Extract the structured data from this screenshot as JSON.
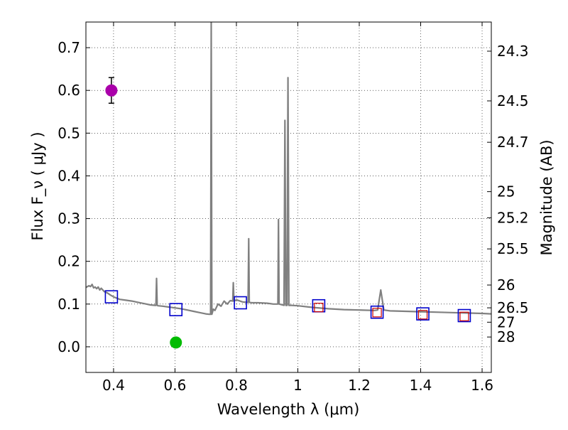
{
  "chart_data": {
    "type": "scatter",
    "title": "",
    "xlabel": "Wavelength  λ (μm)",
    "ylabel": "Flux  F_ν  ( μJy )",
    "ylabel_right": "Magnitude (AB)",
    "xlim": [
      0.31,
      1.63
    ],
    "ylim": [
      -0.06,
      0.76
    ],
    "grid": true,
    "x_ticks": [
      0.4,
      0.6,
      0.8,
      1.0,
      1.2,
      1.4,
      1.6
    ],
    "x_tick_labels": [
      "0.4",
      "0.6",
      "0.8",
      "1",
      "1.2",
      "1.4",
      "1.6"
    ],
    "y_ticks": [
      0.0,
      0.1,
      0.2,
      0.3,
      0.4,
      0.5,
      0.6,
      0.7
    ],
    "y_tick_labels": [
      "0.0",
      "0.1",
      "0.2",
      "0.3",
      "0.4",
      "0.5",
      "0.6",
      "0.7"
    ],
    "right_ticks": [
      {
        "label": "24.3",
        "mag": 24.3
      },
      {
        "label": "24.5",
        "mag": 24.5
      },
      {
        "label": "24.7",
        "mag": 24.7
      },
      {
        "label": "25",
        "mag": 25.0
      },
      {
        "label": "25.2",
        "mag": 25.2
      },
      {
        "label": "25.5",
        "mag": 25.5
      },
      {
        "label": "26",
        "mag": 26.0
      },
      {
        "label": "26.5",
        "mag": 26.5
      },
      {
        "label": "27",
        "mag": 27.0
      },
      {
        "label": "28",
        "mag": 28.0
      }
    ],
    "colors": {
      "spectrum": "#808080",
      "model_box": "#0000cc",
      "observed_box": "#cc0000",
      "magenta_point": "#aa00aa",
      "green_point": "#00bb00",
      "error_bar": "#000000"
    },
    "series": [
      {
        "name": "model spectrum",
        "kind": "line",
        "points": [
          [
            0.31,
            0.139
          ],
          [
            0.32,
            0.143
          ],
          [
            0.325,
            0.141
          ],
          [
            0.33,
            0.146
          ],
          [
            0.335,
            0.138
          ],
          [
            0.34,
            0.14
          ],
          [
            0.345,
            0.136
          ],
          [
            0.35,
            0.14
          ],
          [
            0.355,
            0.133
          ],
          [
            0.36,
            0.137
          ],
          [
            0.37,
            0.129
          ],
          [
            0.38,
            0.126
          ],
          [
            0.39,
            0.121
          ],
          [
            0.4,
            0.117
          ],
          [
            0.42,
            0.111
          ],
          [
            0.44,
            0.109
          ],
          [
            0.46,
            0.107
          ],
          [
            0.48,
            0.104
          ],
          [
            0.5,
            0.101
          ],
          [
            0.52,
            0.098
          ],
          [
            0.535,
            0.097
          ],
          [
            0.538,
            0.097
          ],
          [
            0.54,
            0.16
          ],
          [
            0.542,
            0.097
          ],
          [
            0.545,
            0.096
          ],
          [
            0.56,
            0.095
          ],
          [
            0.58,
            0.093
          ],
          [
            0.6,
            0.091
          ],
          [
            0.62,
            0.089
          ],
          [
            0.64,
            0.086
          ],
          [
            0.66,
            0.083
          ],
          [
            0.68,
            0.08
          ],
          [
            0.7,
            0.077
          ],
          [
            0.712,
            0.076
          ],
          [
            0.716,
            0.076
          ],
          [
            0.718,
            0.76
          ],
          [
            0.72,
            0.076
          ],
          [
            0.725,
            0.088
          ],
          [
            0.73,
            0.085
          ],
          [
            0.74,
            0.1
          ],
          [
            0.75,
            0.095
          ],
          [
            0.76,
            0.107
          ],
          [
            0.77,
            0.1
          ],
          [
            0.78,
            0.108
          ],
          [
            0.788,
            0.107
          ],
          [
            0.79,
            0.15
          ],
          [
            0.792,
            0.107
          ],
          [
            0.8,
            0.11
          ],
          [
            0.82,
            0.105
          ],
          [
            0.835,
            0.104
          ],
          [
            0.838,
            0.104
          ],
          [
            0.84,
            0.253
          ],
          [
            0.842,
            0.104
          ],
          [
            0.85,
            0.103
          ],
          [
            0.87,
            0.103
          ],
          [
            0.9,
            0.102
          ],
          [
            0.92,
            0.1
          ],
          [
            0.935,
            0.1
          ],
          [
            0.937,
            0.298
          ],
          [
            0.939,
            0.1
          ],
          [
            0.945,
            0.099
          ],
          [
            0.955,
            0.097
          ],
          [
            0.958,
            0.53
          ],
          [
            0.961,
            0.097
          ],
          [
            0.965,
            0.097
          ],
          [
            0.968,
            0.63
          ],
          [
            0.971,
            0.097
          ],
          [
            0.98,
            0.097
          ],
          [
            1.0,
            0.096
          ],
          [
            1.05,
            0.092
          ],
          [
            1.1,
            0.089
          ],
          [
            1.15,
            0.087
          ],
          [
            1.2,
            0.086
          ],
          [
            1.25,
            0.085
          ],
          [
            1.26,
            0.086
          ],
          [
            1.27,
            0.133
          ],
          [
            1.28,
            0.086
          ],
          [
            1.3,
            0.084
          ],
          [
            1.35,
            0.083
          ],
          [
            1.4,
            0.082
          ],
          [
            1.45,
            0.081
          ],
          [
            1.5,
            0.08
          ],
          [
            1.55,
            0.079
          ],
          [
            1.6,
            0.078
          ],
          [
            1.63,
            0.077
          ]
        ]
      },
      {
        "name": "model photometry",
        "kind": "open-square",
        "color": "#0000cc",
        "points": [
          [
            0.393,
            0.117
          ],
          [
            0.603,
            0.087
          ],
          [
            0.813,
            0.103
          ],
          [
            1.068,
            0.096
          ],
          [
            1.258,
            0.081
          ],
          [
            1.407,
            0.077
          ],
          [
            1.542,
            0.073
          ]
        ]
      },
      {
        "name": "observed photometry",
        "kind": "open-square-small",
        "color": "#cc0000",
        "points": [
          [
            1.068,
            0.092
          ],
          [
            1.258,
            0.08
          ],
          [
            1.407,
            0.075
          ],
          [
            1.542,
            0.071
          ]
        ]
      },
      {
        "name": "observed flux (magenta)",
        "kind": "filled-circle",
        "color": "#aa00aa",
        "points": [
          [
            0.393,
            0.6
          ]
        ],
        "errors": [
          0.03
        ]
      },
      {
        "name": "observed flux (green)",
        "kind": "filled-circle",
        "color": "#00bb00",
        "points": [
          [
            0.603,
            0.01
          ]
        ],
        "errors": [
          0.01
        ]
      }
    ]
  }
}
